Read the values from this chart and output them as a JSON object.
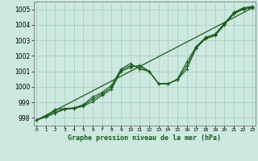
{
  "title": "Graphe pression niveau de la mer (hPa)",
  "xlabel_ticks": [
    0,
    1,
    2,
    3,
    4,
    5,
    6,
    7,
    8,
    9,
    10,
    11,
    12,
    13,
    14,
    15,
    16,
    17,
    18,
    19,
    20,
    21,
    22,
    23
  ],
  "ylim": [
    997.5,
    1005.5
  ],
  "xlim": [
    -0.3,
    23.3
  ],
  "yticks": [
    998,
    999,
    1000,
    1001,
    1002,
    1003,
    1004,
    1005
  ],
  "background_color": "#cce8e0",
  "grid_color": "#aacfbf",
  "line_color": "#1a5c1a",
  "trend_x": [
    0,
    23
  ],
  "trend_y": [
    997.85,
    1005.1
  ],
  "curve1_x": [
    0,
    1,
    2,
    3,
    4,
    5,
    6,
    7,
    8,
    9,
    10,
    11,
    12,
    13,
    14,
    15,
    16,
    17,
    18,
    19,
    20,
    21,
    22,
    23
  ],
  "curve1_y": [
    997.85,
    998.05,
    998.3,
    998.55,
    998.6,
    998.75,
    999.05,
    999.45,
    999.85,
    1001.0,
    1001.25,
    1001.4,
    1001.0,
    1000.2,
    1000.2,
    1000.45,
    1001.15,
    1002.5,
    1003.1,
    1003.3,
    1004.0,
    1004.7,
    1005.0,
    1005.1
  ],
  "curve2_x": [
    0,
    1,
    2,
    3,
    4,
    5,
    6,
    7,
    8,
    9,
    10,
    11,
    12,
    13,
    14,
    15,
    16,
    17,
    18,
    19,
    20,
    21,
    22,
    23
  ],
  "curve2_y": [
    997.85,
    998.1,
    998.55,
    998.6,
    998.65,
    998.85,
    999.35,
    999.65,
    1000.1,
    1001.15,
    1001.5,
    1001.15,
    1001.0,
    1000.2,
    1000.2,
    1000.5,
    1001.6,
    1002.6,
    1003.2,
    1003.4,
    1004.1,
    1004.8,
    1005.1,
    1005.2
  ],
  "curve3_x": [
    0,
    1,
    2,
    3,
    4,
    5,
    6,
    7,
    8,
    9,
    10,
    11,
    12,
    13,
    14,
    15,
    16,
    17,
    18,
    19,
    20,
    21,
    22,
    23
  ],
  "curve3_y": [
    997.85,
    998.07,
    998.4,
    998.57,
    998.62,
    998.8,
    999.2,
    999.55,
    999.97,
    1001.07,
    1001.37,
    1001.27,
    1001.0,
    1000.2,
    1000.2,
    1000.47,
    1001.37,
    1002.55,
    1003.15,
    1003.35,
    1004.05,
    1004.75,
    1005.05,
    1005.15
  ]
}
